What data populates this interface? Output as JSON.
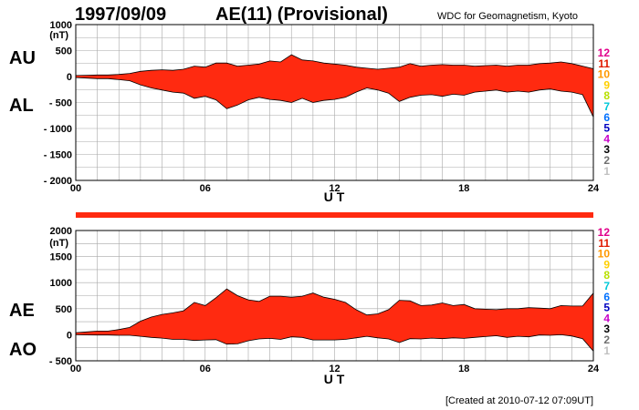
{
  "header": {
    "date": "1997/09/09",
    "title": "AE(11) (Provisional)",
    "organization": "WDC for Geomagnetism, Kyoto"
  },
  "footer": {
    "created": "[Created at 2010-07-12 07:09UT]"
  },
  "colors": {
    "fill": "#ff2a10",
    "band": "#ff2a10",
    "grid": "#a8a8a8"
  },
  "scale_legend": [
    {
      "label": "12",
      "color": "#e0008a"
    },
    {
      "label": "11",
      "color": "#e01a00"
    },
    {
      "label": "10",
      "color": "#ff9800"
    },
    {
      "label": "9",
      "color": "#ffd000"
    },
    {
      "label": "8",
      "color": "#b8e000"
    },
    {
      "label": "7",
      "color": "#00c8d8"
    },
    {
      "label": "6",
      "color": "#0070ff"
    },
    {
      "label": "5",
      "color": "#0000c0"
    },
    {
      "label": "4",
      "color": "#c800c8"
    },
    {
      "label": "3",
      "color": "#000000"
    },
    {
      "label": "2",
      "color": "#707070"
    },
    {
      "label": "1",
      "color": "#c0c0c0"
    }
  ],
  "chart_data": [
    {
      "type": "area",
      "upper_label": "AU",
      "lower_label": "AL",
      "unit": "(nT)",
      "xlabel": "U T",
      "xlim": [
        0,
        24
      ],
      "ylim": [
        -2000,
        1000
      ],
      "yticks": [
        "1000",
        "500",
        "0",
        "- 500",
        "- 1000",
        "- 1500",
        "- 2000"
      ],
      "ytick_values": [
        1000,
        500,
        0,
        -500,
        -1000,
        -1500,
        -2000
      ],
      "xticks": [
        "00",
        "06",
        "12",
        "18",
        "24"
      ],
      "xtick_values": [
        0,
        6,
        12,
        18,
        24
      ],
      "grid": true,
      "x": [
        0,
        0.5,
        1,
        1.5,
        2,
        2.5,
        3,
        3.5,
        4,
        4.5,
        5,
        5.5,
        6,
        6.5,
        7,
        7.5,
        8,
        8.5,
        9,
        9.5,
        10,
        10.5,
        11,
        11.5,
        12,
        12.5,
        13,
        13.5,
        14,
        14.5,
        15,
        15.5,
        16,
        16.5,
        17,
        17.5,
        18,
        18.5,
        19,
        19.5,
        20,
        20.5,
        21,
        21.5,
        22,
        22.5,
        23,
        23.5,
        24
      ],
      "series": [
        {
          "name": "AU",
          "values": [
            20,
            25,
            30,
            30,
            40,
            60,
            100,
            120,
            130,
            120,
            140,
            200,
            180,
            260,
            260,
            200,
            220,
            240,
            300,
            280,
            420,
            320,
            300,
            260,
            240,
            220,
            180,
            160,
            140,
            160,
            180,
            250,
            200,
            220,
            230,
            220,
            220,
            200,
            210,
            220,
            200,
            220,
            220,
            250,
            260,
            280,
            250,
            200,
            150
          ]
        },
        {
          "name": "AL",
          "values": [
            -20,
            -30,
            -40,
            -40,
            -60,
            -80,
            -160,
            -220,
            -260,
            -300,
            -320,
            -420,
            -380,
            -450,
            -620,
            -550,
            -450,
            -400,
            -440,
            -460,
            -500,
            -420,
            -500,
            -460,
            -440,
            -400,
            -300,
            -220,
            -260,
            -320,
            -480,
            -400,
            -360,
            -350,
            -380,
            -340,
            -360,
            -300,
            -280,
            -260,
            -300,
            -280,
            -300,
            -260,
            -240,
            -280,
            -300,
            -350,
            -780
          ]
        }
      ]
    },
    {
      "type": "area",
      "upper_label": "AE",
      "lower_label": "AO",
      "unit": "(nT)",
      "xlabel": "U T",
      "xlim": [
        0,
        24
      ],
      "ylim": [
        -500,
        2000
      ],
      "yticks": [
        "2000",
        "1500",
        "1000",
        "500",
        "0",
        "- 500"
      ],
      "ytick_values": [
        2000,
        1500,
        1000,
        500,
        0,
        -500
      ],
      "xticks": [
        "00",
        "06",
        "12",
        "18",
        "24"
      ],
      "xtick_values": [
        0,
        6,
        12,
        18,
        24
      ],
      "grid": true,
      "x": [
        0,
        0.5,
        1,
        1.5,
        2,
        2.5,
        3,
        3.5,
        4,
        4.5,
        5,
        5.5,
        6,
        6.5,
        7,
        7.5,
        8,
        8.5,
        9,
        9.5,
        10,
        10.5,
        11,
        11.5,
        12,
        12.5,
        13,
        13.5,
        14,
        14.5,
        15,
        15.5,
        16,
        16.5,
        17,
        17.5,
        18,
        18.5,
        19,
        19.5,
        20,
        20.5,
        21,
        21.5,
        22,
        22.5,
        23,
        23.5,
        24
      ],
      "series": [
        {
          "name": "AE",
          "values": [
            40,
            55,
            70,
            70,
            100,
            140,
            260,
            340,
            390,
            420,
            460,
            620,
            560,
            710,
            880,
            750,
            670,
            640,
            740,
            740,
            720,
            740,
            800,
            720,
            680,
            620,
            480,
            380,
            400,
            480,
            660,
            650,
            560,
            570,
            610,
            560,
            580,
            500,
            490,
            480,
            500,
            500,
            520,
            510,
            500,
            560,
            550,
            550,
            800
          ]
        },
        {
          "name": "AO",
          "values": [
            0,
            -3,
            -5,
            -5,
            -10,
            -10,
            -30,
            -50,
            -65,
            -90,
            -90,
            -110,
            -100,
            -95,
            -180,
            -175,
            -115,
            -80,
            -70,
            -90,
            -40,
            -50,
            -100,
            -100,
            -100,
            -90,
            -60,
            -30,
            -60,
            -80,
            -150,
            -75,
            -80,
            -65,
            -75,
            -60,
            -70,
            -50,
            -35,
            -20,
            -50,
            -30,
            -40,
            -5,
            -10,
            0,
            -25,
            -75,
            -315
          ]
        }
      ]
    }
  ]
}
